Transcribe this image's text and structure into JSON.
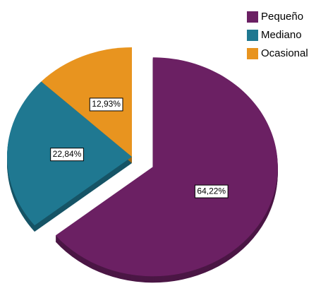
{
  "chart_data": {
    "type": "pie",
    "categories": [
      "Pequeño",
      "Mediano",
      "Ocasional"
    ],
    "values": [
      64.22,
      22.84,
      12.93
    ],
    "value_labels": [
      "64,22%",
      "22,84%",
      "12,93%"
    ],
    "colors": [
      "#6b2063",
      "#1f7891",
      "#e8941f"
    ],
    "explode": [
      true,
      false,
      false
    ],
    "legend": "top-right"
  }
}
